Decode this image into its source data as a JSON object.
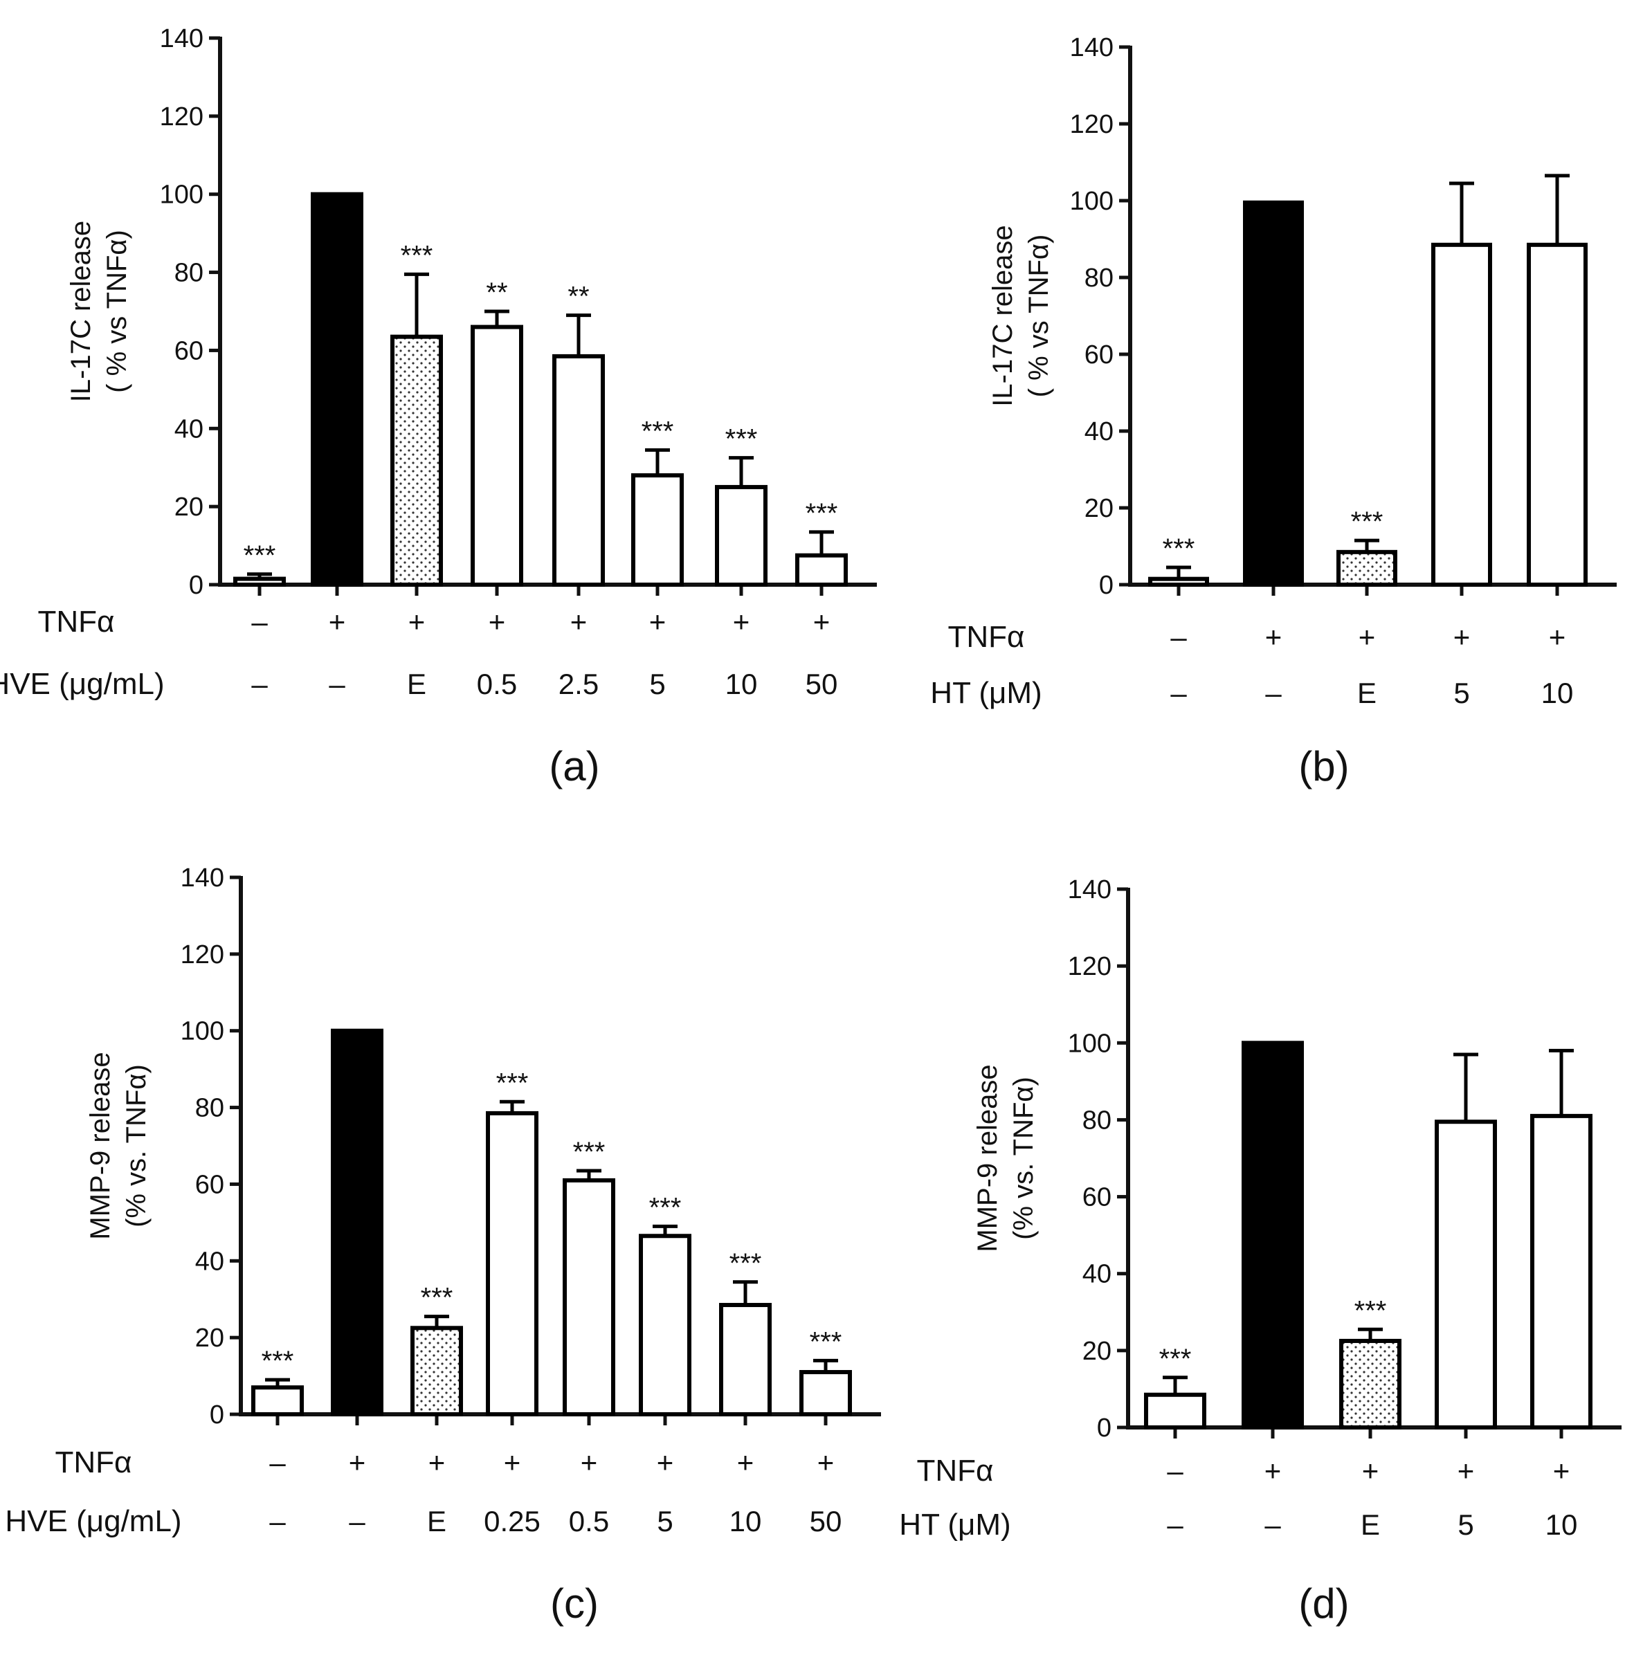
{
  "chart_data": [
    {
      "type": "bar",
      "panel_label": "(a)",
      "ylabel": [
        "IL-17C release",
        "( % vs TNFα)"
      ],
      "ylim": [
        0,
        140
      ],
      "yticks": [
        "0",
        "20",
        "40",
        "60",
        "80",
        "100",
        "120",
        "140"
      ],
      "values": [
        1.5,
        100,
        63.5,
        66,
        58.5,
        28,
        25,
        7.5
      ],
      "errors": [
        1.2,
        0,
        16,
        4,
        10.5,
        6.5,
        7.5,
        6
      ],
      "styles": [
        "white",
        "black",
        "dotted",
        "white",
        "white",
        "white",
        "white",
        "white"
      ],
      "significance": [
        "***",
        "",
        "***",
        "**",
        "**",
        "***",
        "***",
        "***"
      ],
      "rows": [
        {
          "label": "TNFα",
          "values": [
            "–",
            "+",
            "+",
            "+",
            "+",
            "+",
            "+",
            "+"
          ]
        },
        {
          "label": "HVE (μg/mL)",
          "values": [
            "–",
            "–",
            "E",
            "0.5",
            "2.5",
            "5",
            "10",
            "50"
          ]
        }
      ]
    },
    {
      "type": "bar",
      "panel_label": "(b)",
      "ylabel": [
        "IL-17C release",
        "( % vs TNFα)"
      ],
      "ylim": [
        0,
        140
      ],
      "yticks": [
        "0",
        "20",
        "40",
        "60",
        "80",
        "100",
        "120",
        "140"
      ],
      "values": [
        1.5,
        99.5,
        8.5,
        88.5,
        88.5
      ],
      "errors": [
        3,
        0,
        3,
        16,
        18
      ],
      "styles": [
        "white",
        "black",
        "dotted",
        "white",
        "white"
      ],
      "significance": [
        "***",
        "",
        "***",
        "",
        ""
      ],
      "rows": [
        {
          "label": "TNFα",
          "values": [
            "–",
            "+",
            "+",
            "+",
            "+"
          ]
        },
        {
          "label": "HT (μM)",
          "values": [
            "–",
            "–",
            "E",
            "5",
            "10"
          ]
        }
      ]
    },
    {
      "type": "bar",
      "panel_label": "(c)",
      "ylabel": [
        "MMP-9 release",
        "(% vs. TNFα)"
      ],
      "ylim": [
        0,
        140
      ],
      "yticks": [
        "0",
        "20",
        "40",
        "60",
        "80",
        "100",
        "120",
        "140"
      ],
      "values": [
        7,
        100,
        22.5,
        78.5,
        61,
        46.5,
        28.5,
        11
      ],
      "errors": [
        2,
        0,
        3,
        3,
        2.5,
        2.5,
        6,
        3
      ],
      "styles": [
        "white",
        "black",
        "dotted",
        "white",
        "white",
        "white",
        "white",
        "white"
      ],
      "significance": [
        "***",
        "",
        "***",
        "***",
        "***",
        "***",
        "***",
        "***"
      ],
      "rows": [
        {
          "label": "TNFα",
          "values": [
            "–",
            "+",
            "+",
            "+",
            "+",
            "+",
            "+",
            "+"
          ]
        },
        {
          "label": "HVE (μg/mL)",
          "values": [
            "–",
            "–",
            "E",
            "0.25",
            "0.5",
            "5",
            "10",
            "50"
          ]
        }
      ]
    },
    {
      "type": "bar",
      "panel_label": "(d)",
      "ylabel": [
        "MMP-9 release",
        "(% vs. TNFα)"
      ],
      "ylim": [
        0,
        140
      ],
      "yticks": [
        "0",
        "20",
        "40",
        "60",
        "80",
        "100",
        "120",
        "140"
      ],
      "values": [
        8.5,
        100,
        22.5,
        79.5,
        81
      ],
      "errors": [
        4.5,
        0,
        3,
        17.5,
        17
      ],
      "styles": [
        "white",
        "black",
        "dotted",
        "white",
        "white"
      ],
      "significance": [
        "***",
        "",
        "***",
        "",
        ""
      ],
      "rows": [
        {
          "label": "TNFα",
          "values": [
            "–",
            "+",
            "+",
            "+",
            "+"
          ]
        },
        {
          "label": "HT (μM)",
          "values": [
            "–",
            "–",
            "E",
            "5",
            "10"
          ]
        }
      ]
    }
  ]
}
